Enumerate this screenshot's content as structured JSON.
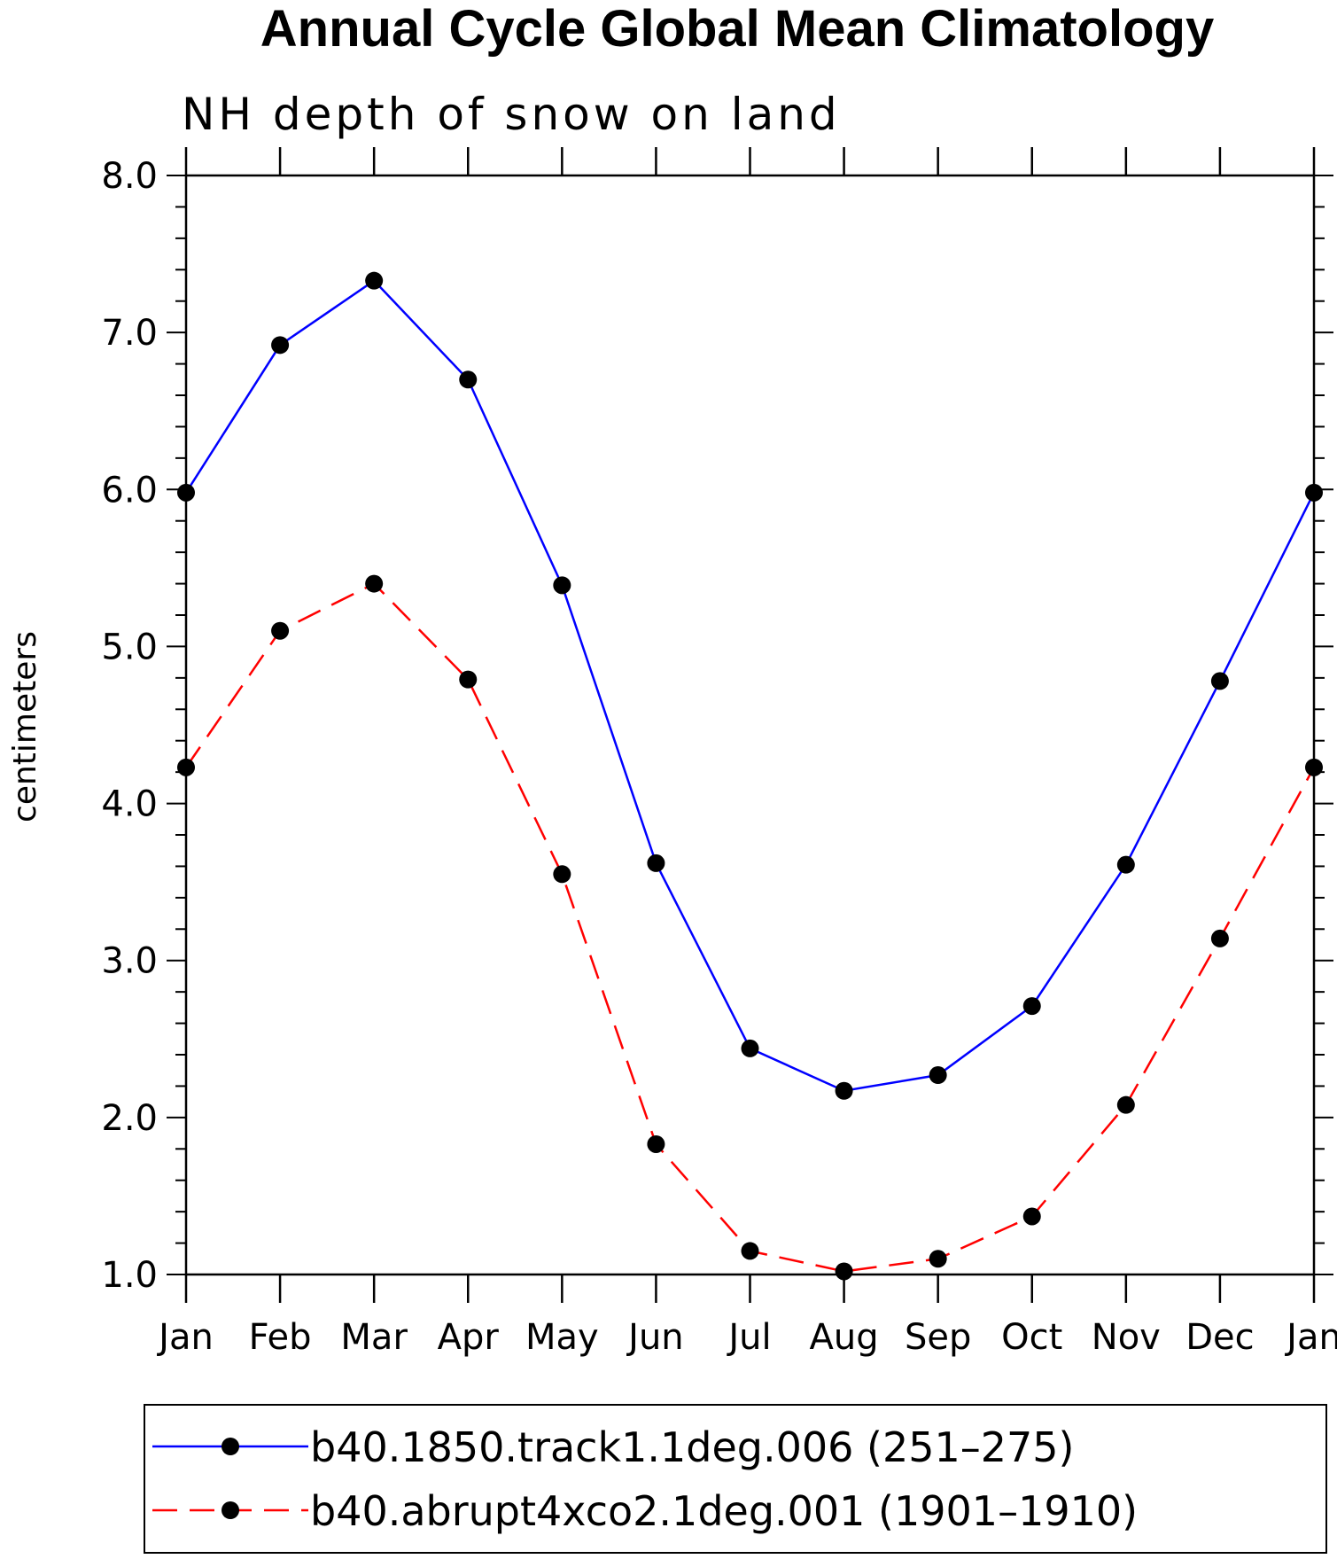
{
  "chart_data": {
    "type": "line",
    "title": "Annual Cycle Global Mean Climatology",
    "subtitle": "NH depth of snow on land",
    "xlabel": "",
    "ylabel": "centimeters",
    "categories": [
      "Jan",
      "Feb",
      "Mar",
      "Apr",
      "May",
      "Jun",
      "Jul",
      "Aug",
      "Sep",
      "Oct",
      "Nov",
      "Dec",
      "Jan"
    ],
    "ylim": [
      1.0,
      8.0
    ],
    "yticks": [
      "1.0",
      "2.0",
      "3.0",
      "4.0",
      "5.0",
      "6.0",
      "7.0",
      "8.0"
    ],
    "grid": false,
    "legend_position": "bottom",
    "series": [
      {
        "name": "b40.1850.track1.1deg.006 (251–275)",
        "color": "#0000ff",
        "dash": "solid",
        "marker": "filled-circle",
        "values": [
          5.98,
          6.92,
          7.33,
          6.7,
          5.39,
          3.62,
          2.44,
          2.17,
          2.27,
          2.71,
          3.61,
          4.78,
          5.98
        ]
      },
      {
        "name": "b40.abrupt4xco2.1deg.001 (1901–1910)",
        "color": "#ff0000",
        "dash": "dashed",
        "marker": "filled-circle",
        "values": [
          4.23,
          5.1,
          5.4,
          4.79,
          3.55,
          1.83,
          1.15,
          1.02,
          1.1,
          1.37,
          2.08,
          3.14,
          4.23
        ]
      }
    ]
  }
}
